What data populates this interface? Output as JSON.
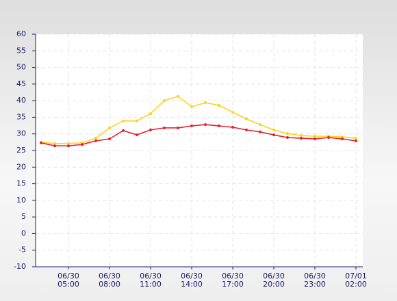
{
  "chart_data": {
    "type": "line",
    "categories": [
      null,
      null,
      "06/30\n05:00",
      null,
      null,
      "06/30\n08:00",
      null,
      null,
      "06/30\n11:00",
      null,
      null,
      "06/30\n14:00",
      null,
      null,
      "06/30\n17:00",
      null,
      null,
      "06/30\n20:00",
      null,
      null,
      "06/30\n23:00",
      null,
      null,
      "07/01\n02:00"
    ],
    "series": [
      {
        "color": "#ffd21f",
        "values": [
          27.5,
          27.1,
          27.1,
          27.3,
          28.7,
          31.8,
          33.9,
          33.9,
          36.1,
          40.0,
          41.3,
          38.2,
          39.4,
          38.6,
          36.5,
          34.5,
          32.8,
          31.2,
          30.1,
          29.5,
          29.3,
          29.3,
          29.1,
          28.7
        ]
      },
      {
        "color": "#e8202a",
        "values": [
          27.3,
          26.4,
          26.4,
          26.8,
          27.9,
          28.5,
          31.0,
          29.7,
          31.2,
          31.8,
          31.8,
          32.4,
          32.8,
          32.4,
          32.0,
          31.2,
          30.6,
          29.7,
          28.9,
          28.7,
          28.5,
          28.9,
          28.5,
          27.9
        ]
      }
    ],
    "ylim": [
      -10,
      60
    ],
    "yticks": [
      -10,
      -5,
      0,
      5,
      10,
      15,
      20,
      25,
      30,
      35,
      40,
      45,
      50,
      55,
      60
    ],
    "grid": true
  }
}
